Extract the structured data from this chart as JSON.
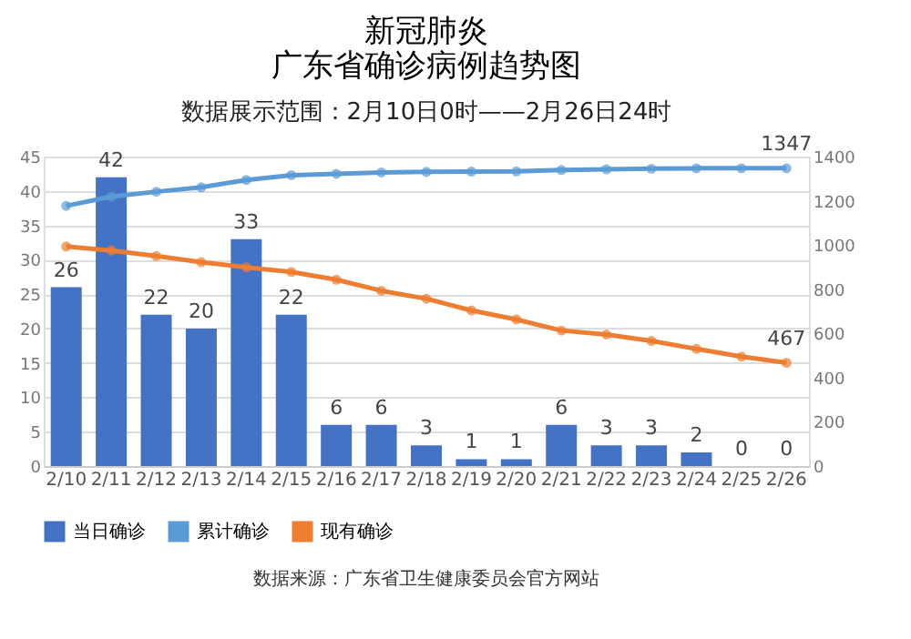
{
  "chart_data": {
    "type": "bar",
    "title": [
      "新冠肺炎",
      "广东省确诊病例趋势图"
    ],
    "subtitle": "数据展示范围：2月10日0时——2月26日24时",
    "categories": [
      "2/10",
      "2/11",
      "2/12",
      "2/13",
      "2/14",
      "2/15",
      "2/16",
      "2/17",
      "2/18",
      "2/19",
      "2/20",
      "2/21",
      "2/22",
      "2/23",
      "2/24",
      "2/25",
      "2/26"
    ],
    "series": [
      {
        "name": "当日确诊",
        "color": "#4472c4",
        "values": [
          26,
          42,
          22,
          20,
          33,
          22,
          6,
          6,
          3,
          1,
          1,
          6,
          3,
          3,
          2,
          0,
          0
        ]
      },
      {
        "name": "累计确诊",
        "type": "line",
        "axis": "y2",
        "color": "#5b9bd5",
        "values": [
          1177,
          1219,
          1241,
          1261,
          1294,
          1316,
          1322,
          1328,
          1331,
          1332,
          1333,
          1339,
          1342,
          1345,
          1347,
          1347,
          1347
        ],
        "value_labels": [
          null,
          null,
          null,
          null,
          null,
          null,
          null,
          null,
          null,
          null,
          null,
          null,
          null,
          null,
          null,
          null,
          "1347"
        ]
      },
      {
        "name": "现有确诊",
        "type": "line",
        "axis": "y2",
        "color": "#ed7d31",
        "values": [
          993,
          975,
          950,
          922,
          899,
          878,
          843,
          793,
          757,
          704,
          663,
          613,
          595,
          566,
          530,
          495,
          467
        ],
        "value_labels": [
          null,
          null,
          null,
          null,
          null,
          null,
          null,
          null,
          null,
          null,
          null,
          null,
          null,
          null,
          null,
          null,
          "467"
        ]
      }
    ],
    "data_labels": true,
    "marker": "circle",
    "line_style": "solid",
    "ylim": [
      0,
      45
    ],
    "yticks": [
      0,
      5,
      10,
      15,
      20,
      25,
      30,
      35,
      40,
      45
    ],
    "y2lim": [
      0,
      1400
    ],
    "y2ticks": [
      0,
      200,
      400,
      600,
      800,
      1000,
      1200,
      1400
    ],
    "grid": "y",
    "legend": "bottom",
    "annotations": [
      "数据来源：广东省卫生健康委员会官方网站"
    ]
  }
}
